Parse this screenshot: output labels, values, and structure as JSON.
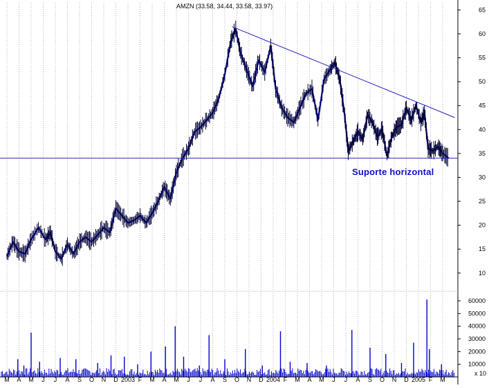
{
  "chart_data": {
    "type": "line",
    "title": "AMZN (33.58, 34.44, 33.58, 33.97)",
    "price_axis": {
      "ticks": [
        10,
        15,
        20,
        25,
        30,
        35,
        40,
        45,
        50,
        55,
        60,
        65
      ],
      "ylim": [
        6.5,
        66.5
      ],
      "scale": "linear"
    },
    "volume_axis": {
      "ticks": [
        10000,
        20000,
        30000,
        40000,
        50000,
        60000
      ],
      "ylim": [
        0,
        66000
      ],
      "unit_label": "x 10"
    },
    "x_labels": [
      "M",
      "A",
      "M",
      "J",
      "J",
      "A",
      "S",
      "O",
      "N",
      "D",
      "2003",
      "F",
      "M",
      "A",
      "M",
      "J",
      "J",
      "A",
      "S",
      "O",
      "N",
      "D",
      "2004",
      "F",
      "M",
      "A",
      "M",
      "J",
      "J",
      "A",
      "S",
      "O",
      "N",
      "D",
      "2005",
      "F",
      "M"
    ],
    "grid": "vertical dotted, monthly",
    "series": [
      {
        "style": "price bars",
        "color": "#0000cc",
        "points": [
          [
            0,
            13.5
          ],
          [
            0.5,
            16.5
          ],
          [
            1,
            14.5
          ],
          [
            1.5,
            14.0
          ],
          [
            2,
            17.0
          ],
          [
            2.6,
            19.5
          ],
          [
            3.2,
            17.0
          ],
          [
            3.6,
            18.5
          ],
          [
            4,
            14.5
          ],
          [
            4.5,
            13.0
          ],
          [
            5,
            16.0
          ],
          [
            5.5,
            14.0
          ],
          [
            6,
            16.5
          ],
          [
            6.5,
            17.5
          ],
          [
            7,
            16.5
          ],
          [
            7.5,
            18.0
          ],
          [
            8,
            19.5
          ],
          [
            8.5,
            18.5
          ],
          [
            9,
            23.5
          ],
          [
            9.5,
            22.0
          ],
          [
            10,
            20.5
          ],
          [
            10.5,
            21.0
          ],
          [
            11,
            22.0
          ],
          [
            11.5,
            20.5
          ],
          [
            12,
            22.5
          ],
          [
            12.5,
            25.0
          ],
          [
            13,
            28.0
          ],
          [
            13.5,
            25.5
          ],
          [
            14,
            31.0
          ],
          [
            14.5,
            34.0
          ],
          [
            15,
            36.0
          ],
          [
            15.5,
            39.5
          ],
          [
            16,
            40.5
          ],
          [
            16.5,
            42.0
          ],
          [
            17,
            43.5
          ],
          [
            17.5,
            46.5
          ],
          [
            18,
            51.5
          ],
          [
            18.5,
            58.5
          ],
          [
            18.9,
            61.0
          ],
          [
            19.3,
            56.0
          ],
          [
            19.8,
            52.5
          ],
          [
            20.3,
            49.0
          ],
          [
            20.8,
            54.5
          ],
          [
            21.3,
            52.0
          ],
          [
            21.8,
            57.5
          ],
          [
            22.2,
            48.5
          ],
          [
            22.7,
            44.5
          ],
          [
            23.2,
            42.5
          ],
          [
            23.7,
            41.5
          ],
          [
            24.2,
            44.5
          ],
          [
            24.7,
            47.5
          ],
          [
            25.2,
            48.5
          ],
          [
            25.7,
            42.0
          ],
          [
            26.2,
            50.5
          ],
          [
            26.7,
            52.5
          ],
          [
            27.1,
            54.0
          ],
          [
            27.5,
            50.5
          ],
          [
            27.9,
            43.0
          ],
          [
            28.2,
            35.5
          ],
          [
            28.6,
            37.5
          ],
          [
            29,
            39.5
          ],
          [
            29.4,
            38.0
          ],
          [
            29.8,
            43.0
          ],
          [
            30.2,
            41.5
          ],
          [
            30.6,
            38.5
          ],
          [
            31,
            40.0
          ],
          [
            31.4,
            34.5
          ],
          [
            31.8,
            38.5
          ],
          [
            32.2,
            40.5
          ],
          [
            32.6,
            41.0
          ],
          [
            33,
            44.5
          ],
          [
            33.4,
            42.0
          ],
          [
            33.8,
            45.0
          ],
          [
            34.2,
            41.5
          ],
          [
            34.5,
            43.5
          ],
          [
            34.8,
            36.0
          ],
          [
            35.2,
            35.5
          ],
          [
            35.6,
            36.5
          ],
          [
            36,
            35.0
          ],
          [
            36.5,
            34.0
          ]
        ]
      }
    ],
    "volume": [
      [
        0.9,
        14000
      ],
      [
        1.4,
        9000
      ],
      [
        2.0,
        35000
      ],
      [
        2.7,
        12000
      ],
      [
        4.4,
        15000
      ],
      [
        5.7,
        14000
      ],
      [
        7.5,
        11000
      ],
      [
        8.6,
        17000
      ],
      [
        9.7,
        16000
      ],
      [
        10.8,
        10000
      ],
      [
        11.9,
        20000
      ],
      [
        13.1,
        24000
      ],
      [
        13.9,
        40000
      ],
      [
        14.6,
        16000
      ],
      [
        15.9,
        9000
      ],
      [
        16.7,
        33000
      ],
      [
        18.0,
        14000
      ],
      [
        19.7,
        22000
      ],
      [
        21.1,
        9000
      ],
      [
        22.6,
        36000
      ],
      [
        23.4,
        12000
      ],
      [
        24.8,
        11000
      ],
      [
        26.4,
        9000
      ],
      [
        28.5,
        37000
      ],
      [
        30.0,
        23000
      ],
      [
        31.3,
        18000
      ],
      [
        32.6,
        11000
      ],
      [
        33.6,
        27000
      ],
      [
        34.7,
        61000
      ],
      [
        34.9,
        22000
      ],
      [
        35.9,
        10000
      ]
    ]
  },
  "lines": {
    "trendline": {
      "from": [
        18.6,
        61.5
      ],
      "to": [
        37.0,
        42.5
      ],
      "color": "#2020c0"
    },
    "support": {
      "price": 34.0,
      "color": "#2020c0"
    }
  },
  "annotation": {
    "text": "Suporte horizontal"
  },
  "colors": {
    "price": "#0000cc",
    "volume": "#0000cc",
    "grid": "#b0b0b0",
    "axis": "#000000",
    "annotation": "#1010c8"
  }
}
